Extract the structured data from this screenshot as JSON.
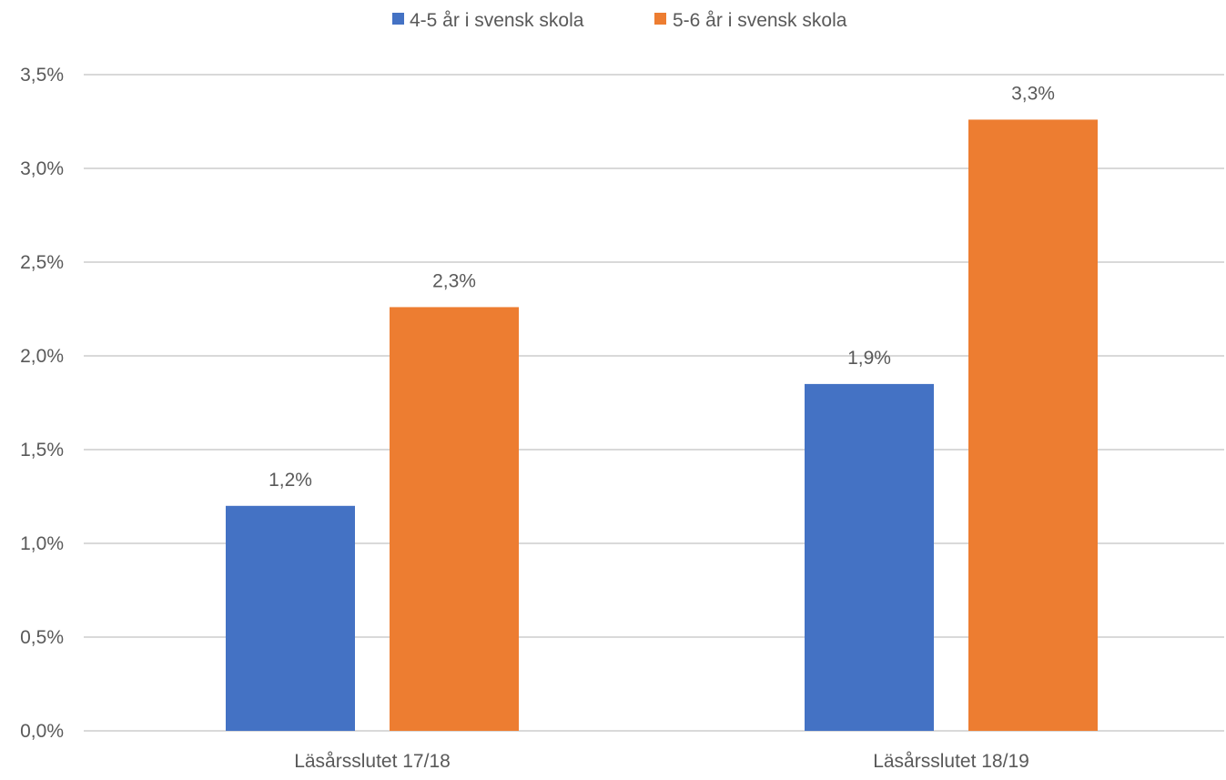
{
  "chart_data": {
    "type": "bar",
    "title": "",
    "xlabel": "",
    "ylabel": "",
    "categories": [
      "Läsårsslutet 17/18",
      "Läsårsslutet 18/19"
    ],
    "series": [
      {
        "name": "4-5 år i svensk skola",
        "values": [
          1.2,
          1.85
        ],
        "labels": [
          "1,2%",
          "1,9%"
        ],
        "color": "#4472C4"
      },
      {
        "name": "5-6 år i svensk skola",
        "values": [
          2.26,
          3.26
        ],
        "labels": [
          "2,3%",
          "3,3%"
        ],
        "color": "#ED7D31"
      }
    ],
    "ylim": [
      0,
      3.5
    ],
    "yticks": [
      0,
      0.5,
      1.0,
      1.5,
      2.0,
      2.5,
      3.0,
      3.5
    ],
    "ytick_labels": [
      "0,0%",
      "0,5%",
      "1,0%",
      "1,5%",
      "2,0%",
      "2,5%",
      "3,0%",
      "3,5%"
    ],
    "grid": true,
    "legend_position": "top-center",
    "gridline_color": "#D9D9D9",
    "text_color": "#595959"
  }
}
